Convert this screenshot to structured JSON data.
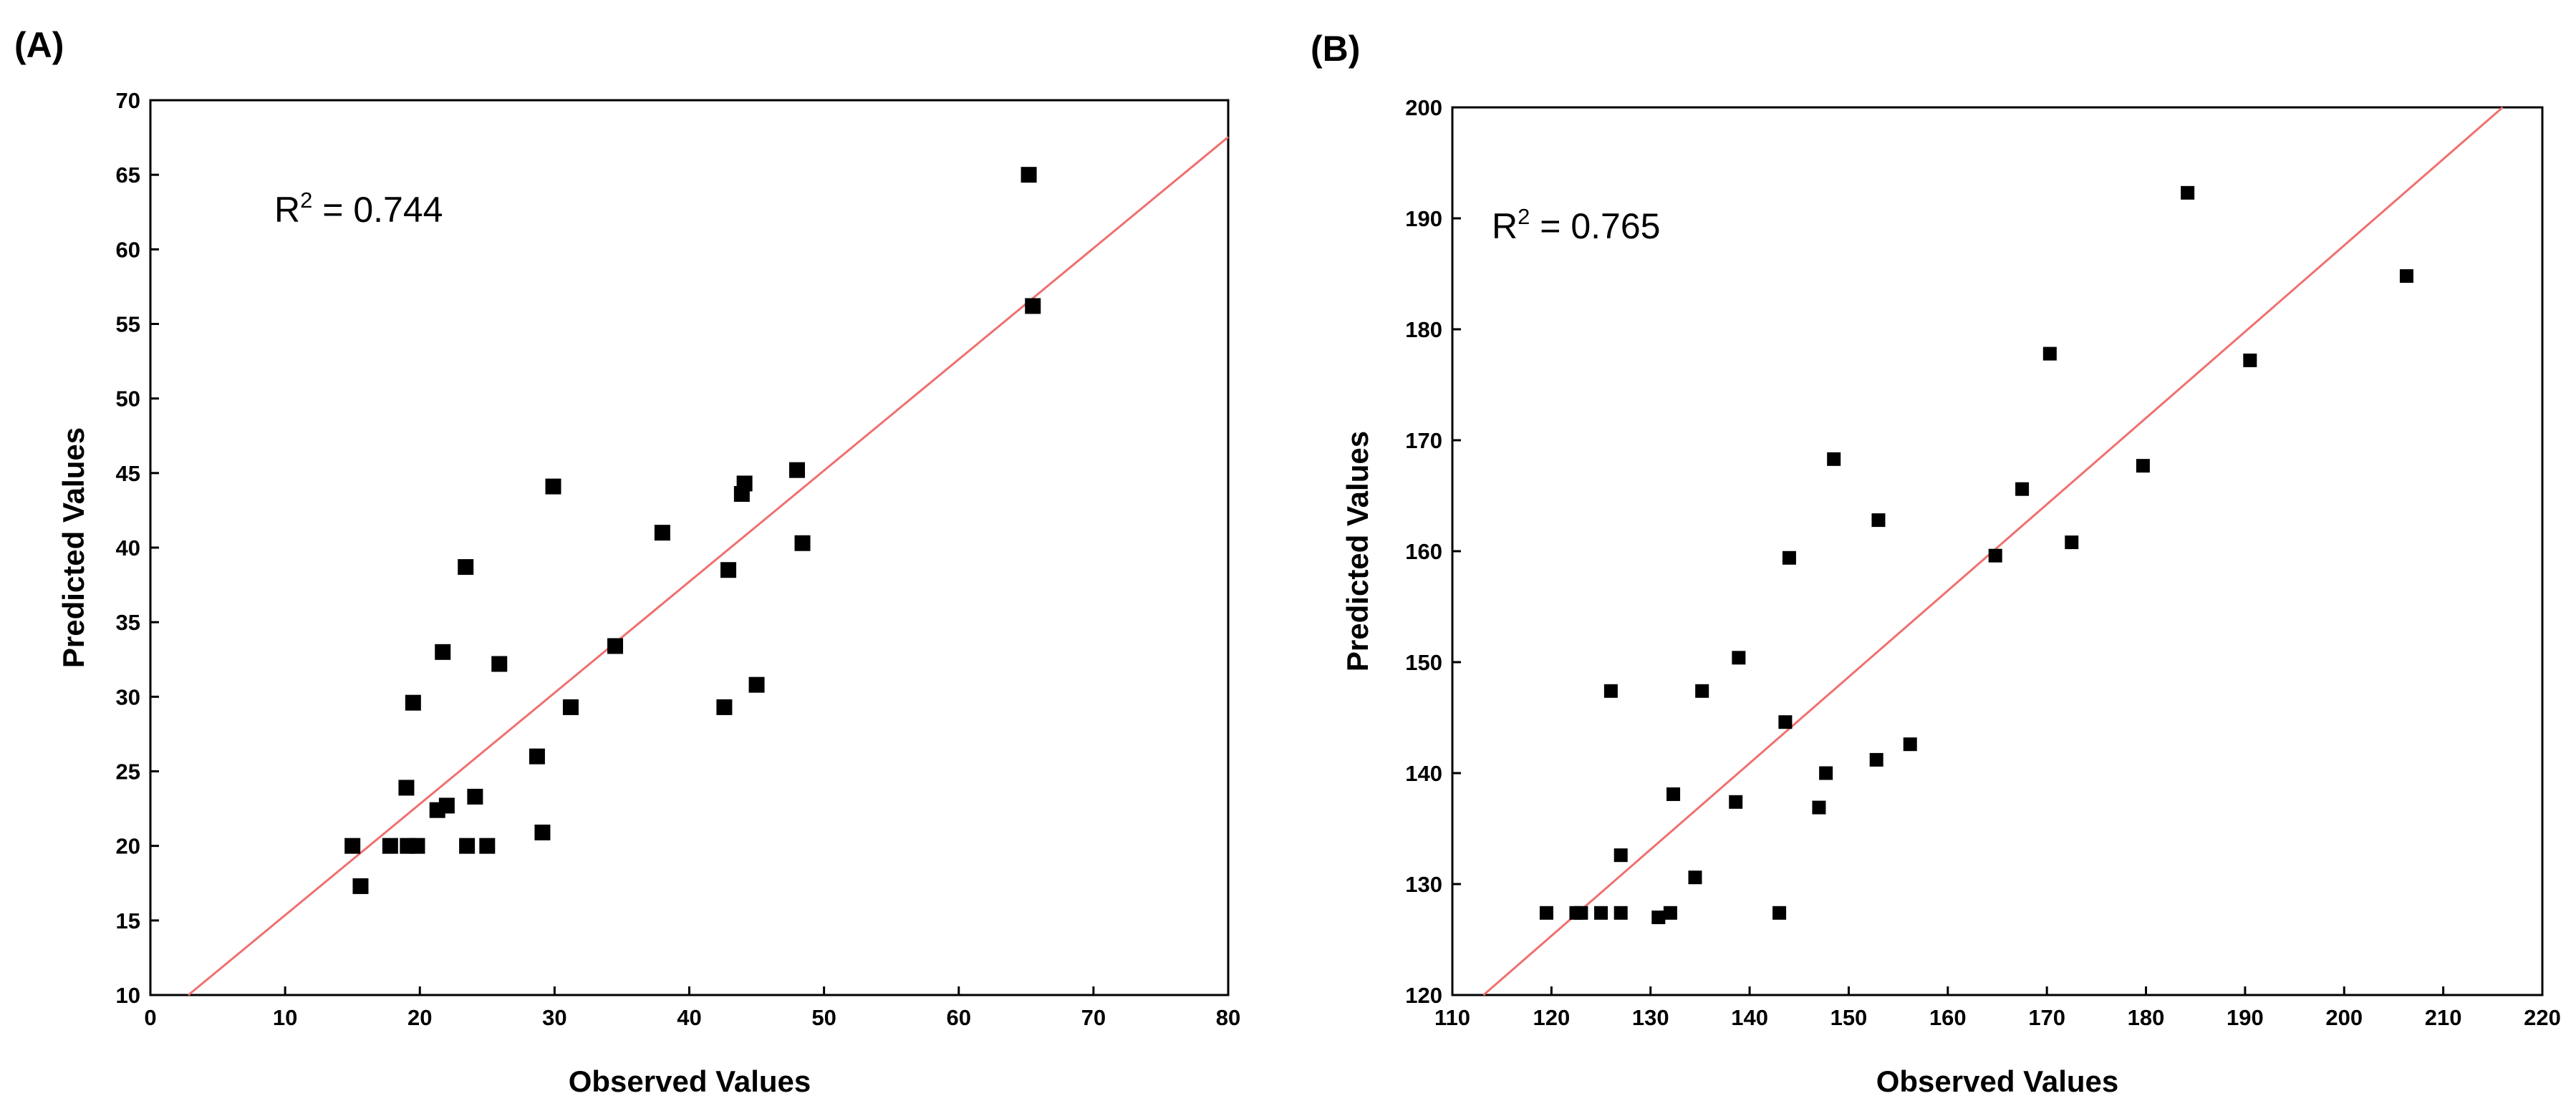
{
  "chart_data": [
    {
      "type": "scatter",
      "panel_label": "(A)",
      "title": "",
      "xlabel": "Observed Values",
      "ylabel": "Predicted Values",
      "xlim": [
        0,
        80
      ],
      "ylim": [
        10,
        70
      ],
      "xticks": [
        0,
        10,
        20,
        30,
        40,
        50,
        60,
        70,
        80
      ],
      "yticks": [
        10,
        15,
        20,
        25,
        30,
        35,
        40,
        45,
        50,
        55,
        60,
        65,
        70
      ],
      "grid": false,
      "annotation": {
        "r2_label": "R",
        "r2_sup": "2",
        "r2_value": " = 0.744"
      },
      "line": {
        "color": "#f07070",
        "slope": 0.7454,
        "intercept": 7.9
      },
      "marker_color": "#000000",
      "points": [
        [
          15.0,
          20.0
        ],
        [
          15.6,
          17.3
        ],
        [
          17.8,
          20.0
        ],
        [
          19.0,
          23.9
        ],
        [
          19.1,
          20.0
        ],
        [
          19.5,
          29.6
        ],
        [
          19.8,
          20.0
        ],
        [
          21.3,
          22.4
        ],
        [
          21.7,
          33.0
        ],
        [
          22.0,
          22.7
        ],
        [
          23.4,
          38.7
        ],
        [
          23.5,
          20.0
        ],
        [
          24.1,
          23.3
        ],
        [
          25.0,
          20.0
        ],
        [
          25.9,
          32.2
        ],
        [
          28.7,
          26.0
        ],
        [
          29.1,
          20.9
        ],
        [
          29.9,
          44.1
        ],
        [
          31.2,
          29.3
        ],
        [
          34.5,
          33.4
        ],
        [
          38.0,
          41.0
        ],
        [
          42.6,
          29.3
        ],
        [
          42.9,
          38.5
        ],
        [
          43.9,
          43.6
        ],
        [
          44.1,
          44.3
        ],
        [
          45.0,
          30.8
        ],
        [
          48.0,
          45.2
        ],
        [
          48.4,
          40.3
        ],
        [
          65.2,
          65.0
        ],
        [
          65.5,
          56.2
        ]
      ]
    },
    {
      "type": "scatter",
      "panel_label": "(B)",
      "title": "",
      "xlabel": "Observed Values",
      "ylabel": "Predicted Values",
      "xlim": [
        110,
        220
      ],
      "ylim": [
        120,
        200
      ],
      "xticks": [
        110,
        120,
        130,
        140,
        150,
        160,
        170,
        180,
        190,
        200,
        210,
        220
      ],
      "yticks": [
        120,
        130,
        140,
        150,
        160,
        170,
        180,
        190,
        200
      ],
      "grid": false,
      "annotation": {
        "r2_label": "R",
        "r2_sup": "2",
        "r2_value": " = 0.765"
      },
      "line": {
        "color": "#f07070",
        "slope": 0.7778,
        "intercept": 32.0
      },
      "marker_color": "#000000",
      "points": [
        [
          119.5,
          127.4
        ],
        [
          122.5,
          127.4
        ],
        [
          123.0,
          127.4
        ],
        [
          125.0,
          127.4
        ],
        [
          126.0,
          147.4
        ],
        [
          127.0,
          127.4
        ],
        [
          127.0,
          132.6
        ],
        [
          130.8,
          127.0
        ],
        [
          132.0,
          127.4
        ],
        [
          132.3,
          138.1
        ],
        [
          134.5,
          130.6
        ],
        [
          135.2,
          147.4
        ],
        [
          138.6,
          137.4
        ],
        [
          138.9,
          150.4
        ],
        [
          143.0,
          127.4
        ],
        [
          143.6,
          144.6
        ],
        [
          144.0,
          159.4
        ],
        [
          147.0,
          136.9
        ],
        [
          147.7,
          140.0
        ],
        [
          148.5,
          168.3
        ],
        [
          152.8,
          141.2
        ],
        [
          153.0,
          162.8
        ],
        [
          156.2,
          142.6
        ],
        [
          164.8,
          159.6
        ],
        [
          167.5,
          165.6
        ],
        [
          170.3,
          177.8
        ],
        [
          172.5,
          160.8
        ],
        [
          179.7,
          167.7
        ],
        [
          184.2,
          192.3
        ],
        [
          190.5,
          177.2
        ],
        [
          206.3,
          184.8
        ]
      ]
    }
  ]
}
